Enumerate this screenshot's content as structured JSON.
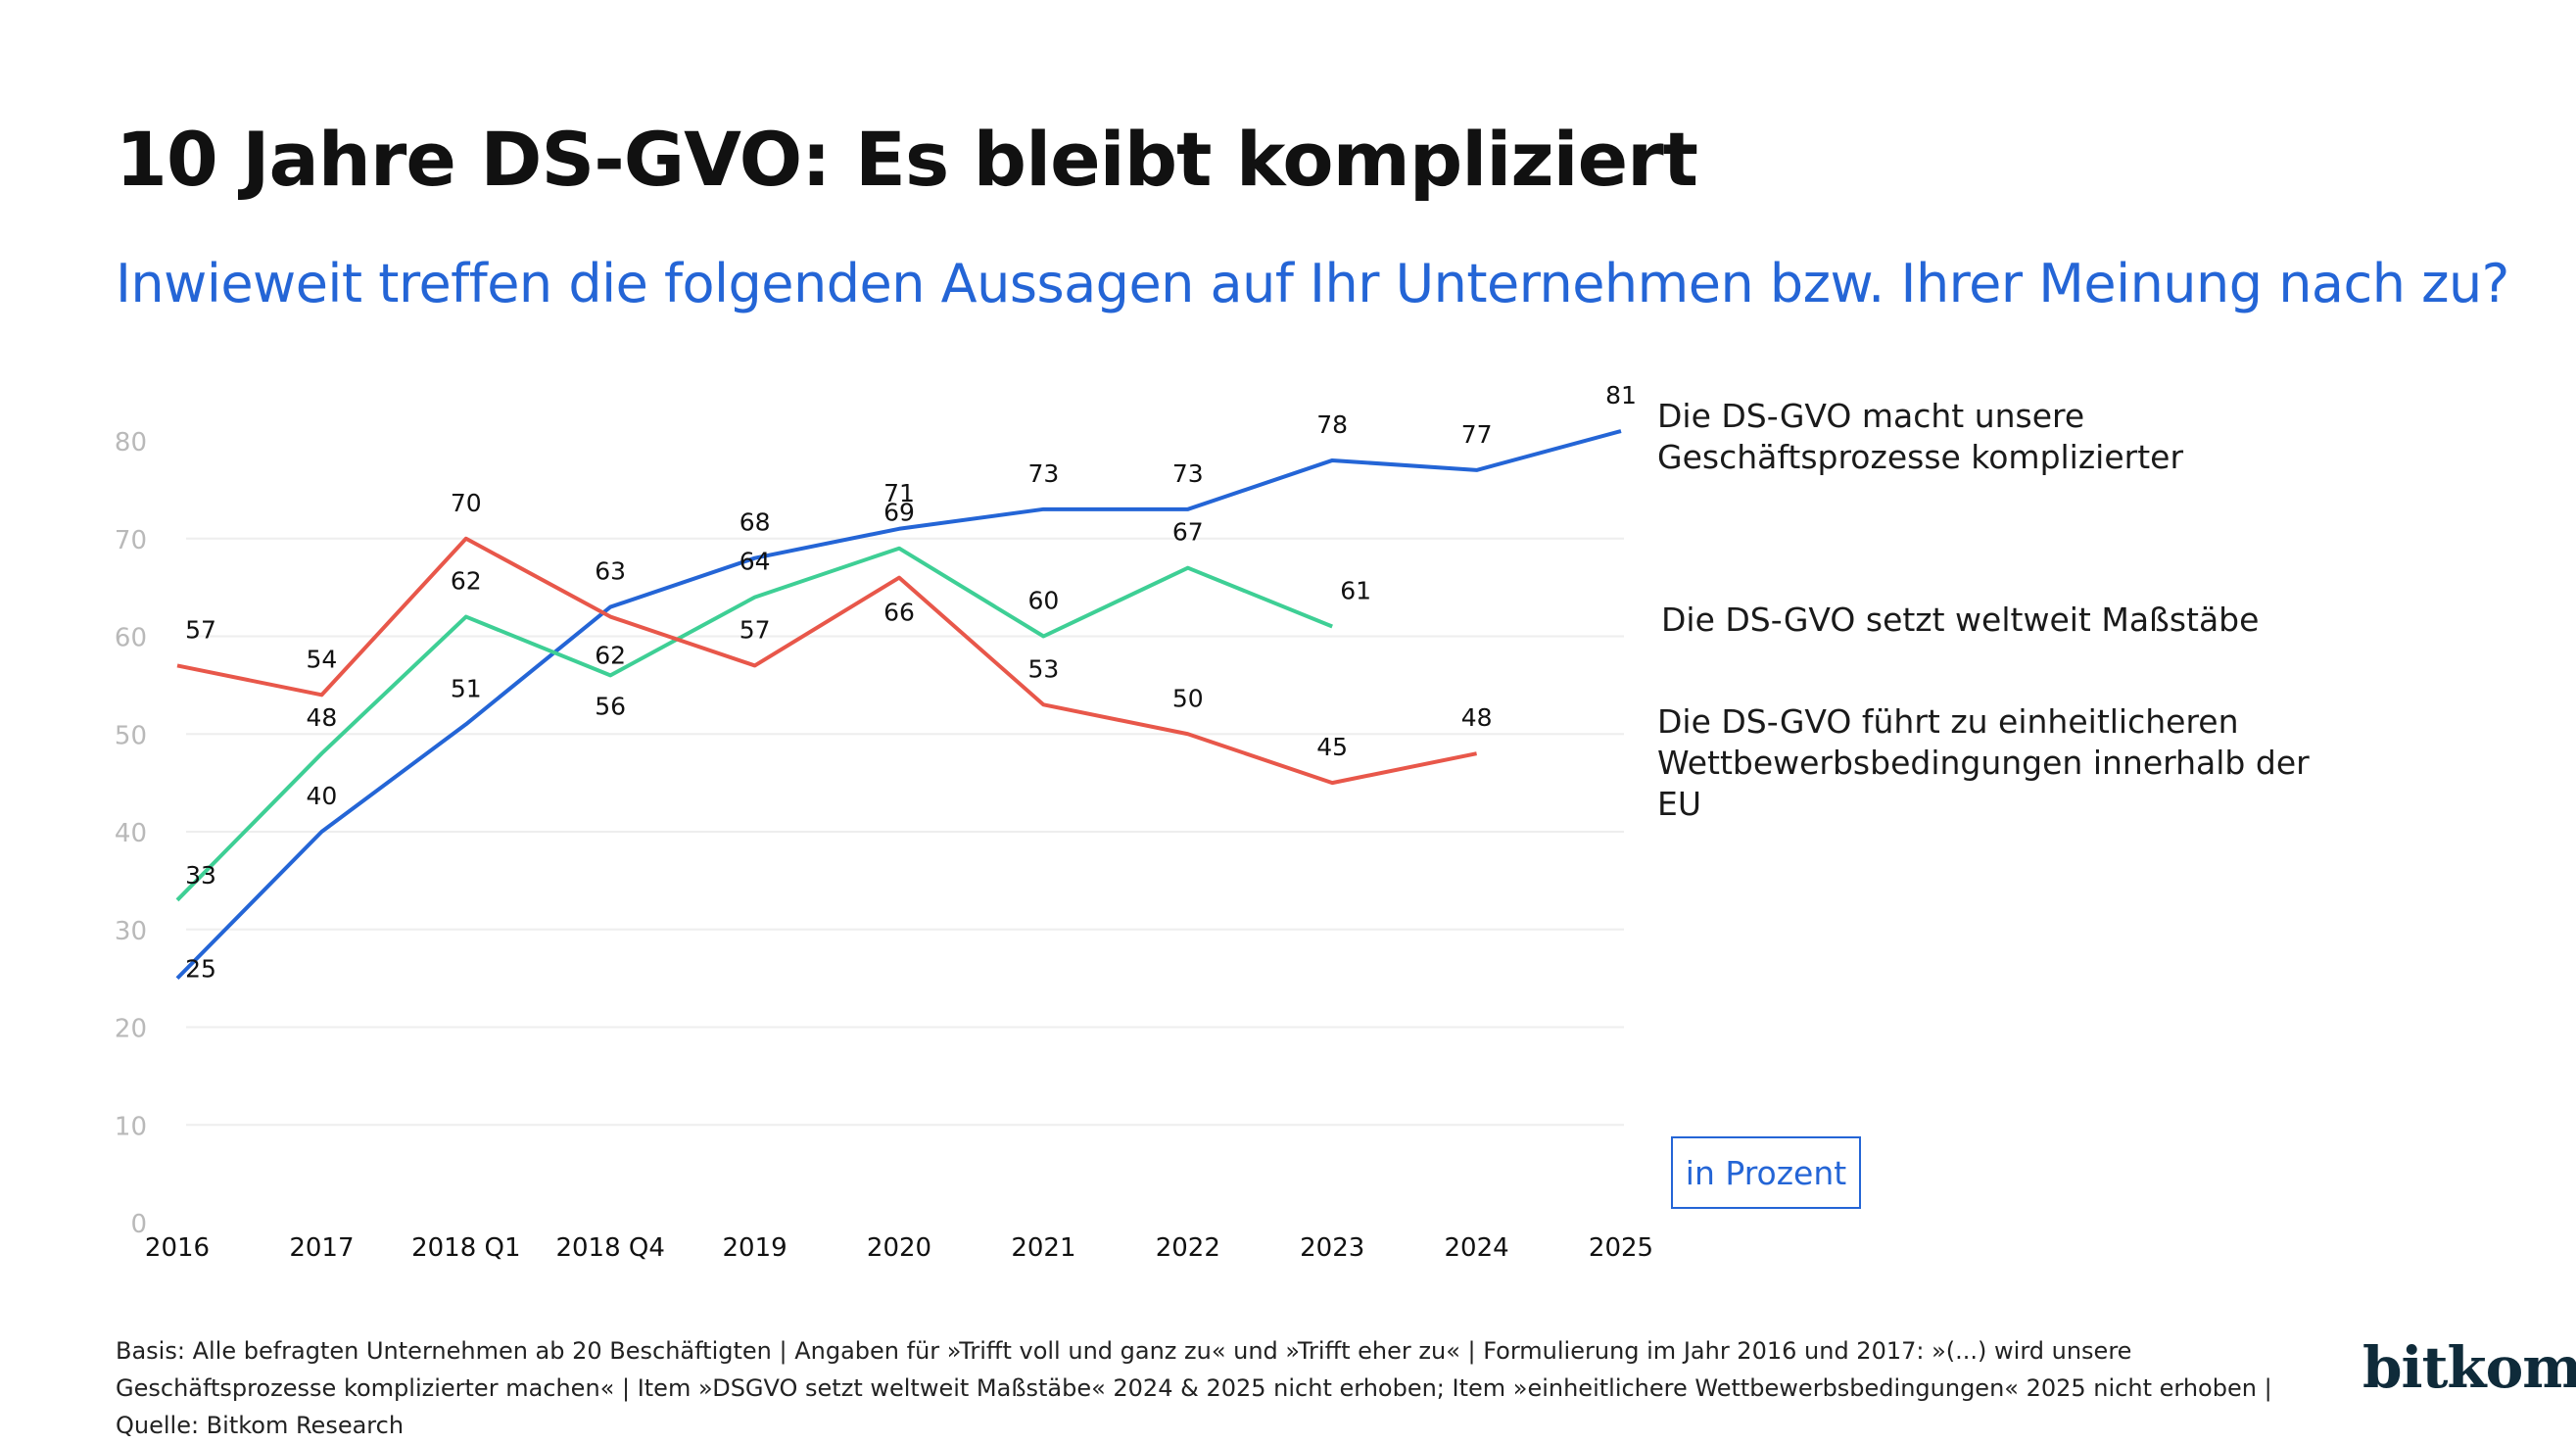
{
  "title": "10 Jahre DS-GVO: Es bleibt kompliziert",
  "subtitle": "Inwieweit treffen die folgenden Aussagen auf Ihr Unternehmen bzw. Ihrer Meinung nach zu?",
  "unit_label": "in Prozent",
  "footnote": "Basis: Alle befragten Unternehmen ab 20 Beschäftigten | Angaben für »Trifft voll und ganz zu« und »Trifft eher zu« | Formulierung im Jahr 2016 und 2017: »(...) wird unsere Geschäftsprozesse komplizierter machen« | Item »DSGVO setzt weltweit Maßstäbe« 2024 & 2025 nicht erhoben; Item »einheitlichere Wettbewerbsbedingungen« 2025 nicht erhoben | Quelle: Bitkom Research",
  "logo_text": "bitkom",
  "chart_data": {
    "type": "line",
    "title": "10 Jahre DS-GVO: Es bleibt kompliziert",
    "subtitle": "Inwieweit treffen die folgenden Aussagen auf Ihr Unternehmen bzw. Ihrer Meinung nach zu?",
    "categories": [
      "2016",
      "2017",
      "2018 Q1",
      "2018 Q4",
      "2019",
      "2020",
      "2021",
      "2022",
      "2023",
      "2024",
      "2025"
    ],
    "ylim": [
      0,
      80
    ],
    "yticks": [
      0,
      10,
      20,
      30,
      40,
      50,
      60,
      70,
      80
    ],
    "grid": true,
    "legend": "right",
    "series": [
      {
        "name": "Die DS-GVO macht unsere Geschäftsprozesse komplizierter",
        "color": "#2465d6",
        "values": [
          25,
          40,
          51,
          63,
          68,
          71,
          73,
          73,
          78,
          77,
          81
        ]
      },
      {
        "name": "Die DS-GVO setzt weltweit Maßstäbe",
        "color": "#3ecf95",
        "values": [
          33,
          48,
          62,
          56,
          64,
          69,
          60,
          67,
          61,
          null,
          null
        ]
      },
      {
        "name": "Die DS-GVO führt zu einheitlicheren Wettbewerbsbedingungen innerhalb der EU",
        "color": "#e8574a",
        "values": [
          57,
          54,
          70,
          62,
          57,
          66,
          53,
          50,
          45,
          48,
          null
        ]
      }
    ]
  }
}
